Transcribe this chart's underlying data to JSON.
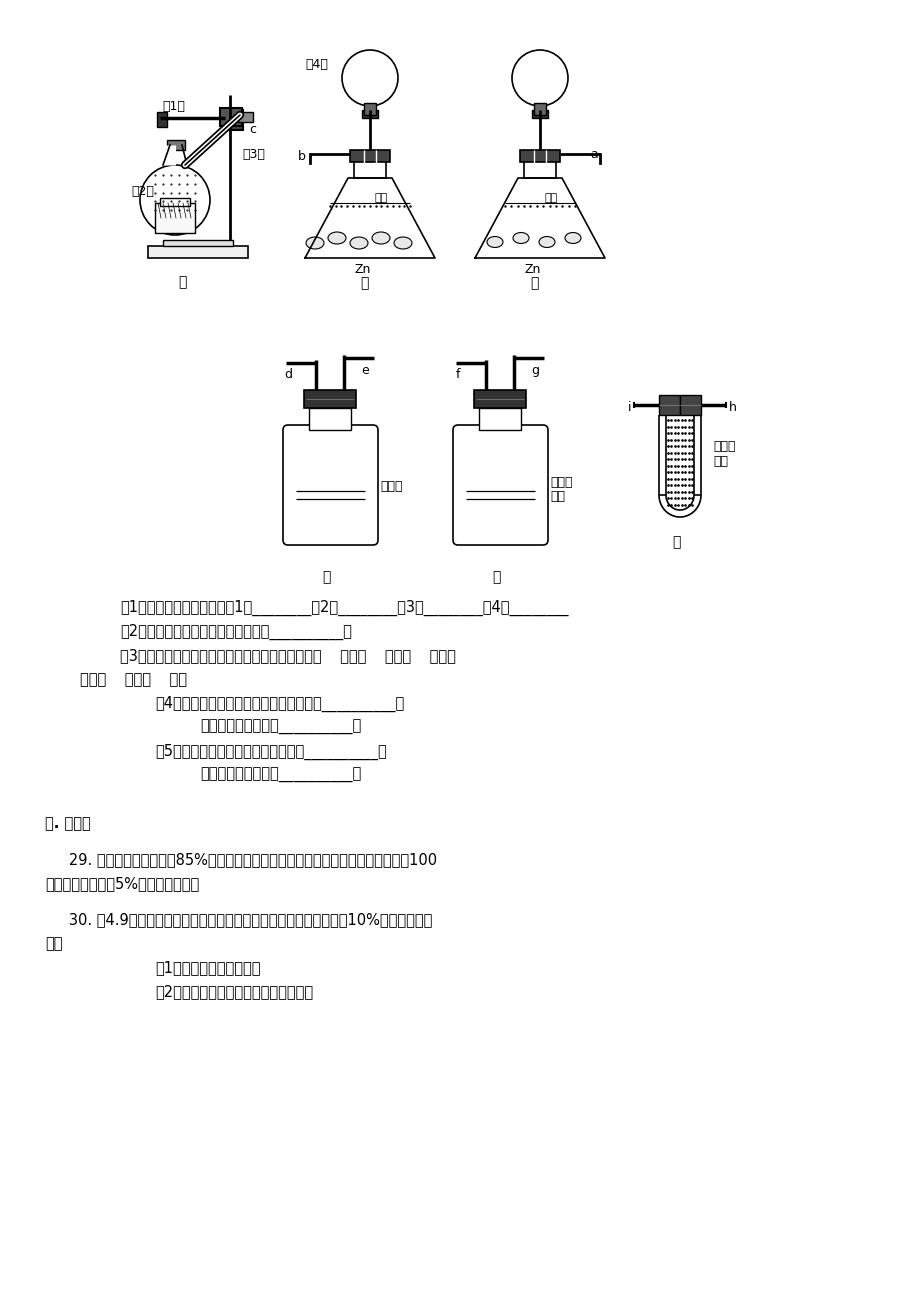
{
  "bg_color": "#ffffff",
  "page_width": 9.2,
  "page_height": 13.02,
  "dpi": 100,
  "text_lines": {
    "q1": "（1）写出标号的仪器名称、1、________、2、________、3、________、4、________",
    "q2": "（2）应选择的发生装置和净化装置是__________。",
    "q3a": "（3）连接选择装置各接口的顺序是（填字母）：（    ）接（    ），（    ）接（",
    "q3b": "），（    ）接（    ）。",
    "q4a": "（4）证明混有并除去氯化氢的实验现象是__________。",
    "q4b": "依据的化学方程式是__________。",
    "q5a": "（5）证明并除去水蒸气的实验现象是__________。",
    "q5b": "依据的化学方程式是__________。",
    "sec5": "五. 计算题",
    "q29a": "   29. 氧化铁的质量分数为85%的赤铁矿中，铁元素的质量分数是多少？这种铁矿石100",
    "q29b": "吨，可炼得含杂质5%的生铁多少吨？",
    "q30a": "   30. 使4.9克氢氧化铜恰好完全溶解，用去一定量的溶质质量分数为10%的稀硫酸。试",
    "q30b": "求：",
    "q30c": "（1）用去稀硫酸的质量。",
    "q30d": "（2）反应后的溶液中溶质的质量分数。"
  }
}
